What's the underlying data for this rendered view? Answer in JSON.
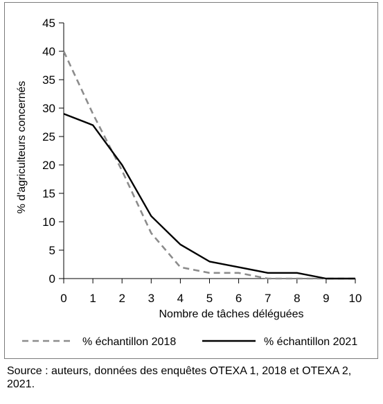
{
  "chart_data": {
    "type": "line",
    "xlabel": "Nombre de tâches déléguées",
    "ylabel": "% d'agriculteurs concernés",
    "x": [
      0,
      1,
      2,
      3,
      4,
      5,
      6,
      7,
      8,
      9,
      10
    ],
    "xlim": [
      0,
      10
    ],
    "ylim": [
      0,
      45
    ],
    "xticks": [
      "0",
      "1",
      "2",
      "3",
      "4",
      "5",
      "6",
      "7",
      "8",
      "9",
      "10"
    ],
    "yticks": [
      "0",
      "5",
      "10",
      "15",
      "20",
      "25",
      "30",
      "35",
      "40",
      "45"
    ],
    "grid": false,
    "legend_position": "bottom",
    "series": [
      {
        "name": "% échantillon 2018",
        "values": [
          40,
          29,
          19,
          8,
          2,
          1,
          1,
          0,
          0,
          0,
          0
        ],
        "color": "#8c8c8c",
        "style": "dashed"
      },
      {
        "name": "% échantillon 2021",
        "values": [
          29,
          27,
          20,
          11,
          6,
          3,
          2,
          1,
          1,
          0,
          0
        ],
        "color": "#000000",
        "style": "solid"
      }
    ]
  },
  "source_note": "Source : auteurs, données des enquêtes OTEXA 1, 2018 et OTEXA 2, 2021."
}
